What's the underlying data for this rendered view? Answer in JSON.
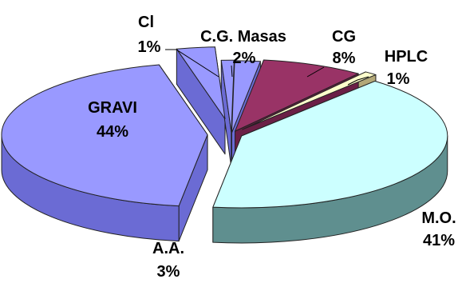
{
  "chart_data": {
    "type": "pie",
    "title": "",
    "style": "3d-exploded",
    "legend": "none",
    "slices": [
      {
        "label": "GRAVI",
        "percent_label": "44%",
        "value": 44,
        "color": "#9999ff",
        "side_color": "#6b6bd4"
      },
      {
        "label": "A.A.",
        "percent_label": "3%",
        "value": 3,
        "color": "#9999ff",
        "side_color": "#6b6bd4"
      },
      {
        "label": "Cl",
        "percent_label": "1%",
        "value": 1,
        "color": "#9999ff",
        "side_color": "#6b6bd4"
      },
      {
        "label": "C.G. Masas",
        "percent_label": "2%",
        "value": 2,
        "color": "#9999ff",
        "side_color": "#6b6bd4"
      },
      {
        "label": "CG",
        "percent_label": "8%",
        "value": 8,
        "color": "#993366",
        "side_color": "#6b1f46"
      },
      {
        "label": "HPLC",
        "percent_label": "1%",
        "value": 1,
        "color": "#ffffcc",
        "side_color": "#b3a878"
      },
      {
        "label": "M.O.",
        "percent_label": "41%",
        "value": 41,
        "color": "#ccffff",
        "side_color": "#5f8f8f"
      }
    ]
  }
}
